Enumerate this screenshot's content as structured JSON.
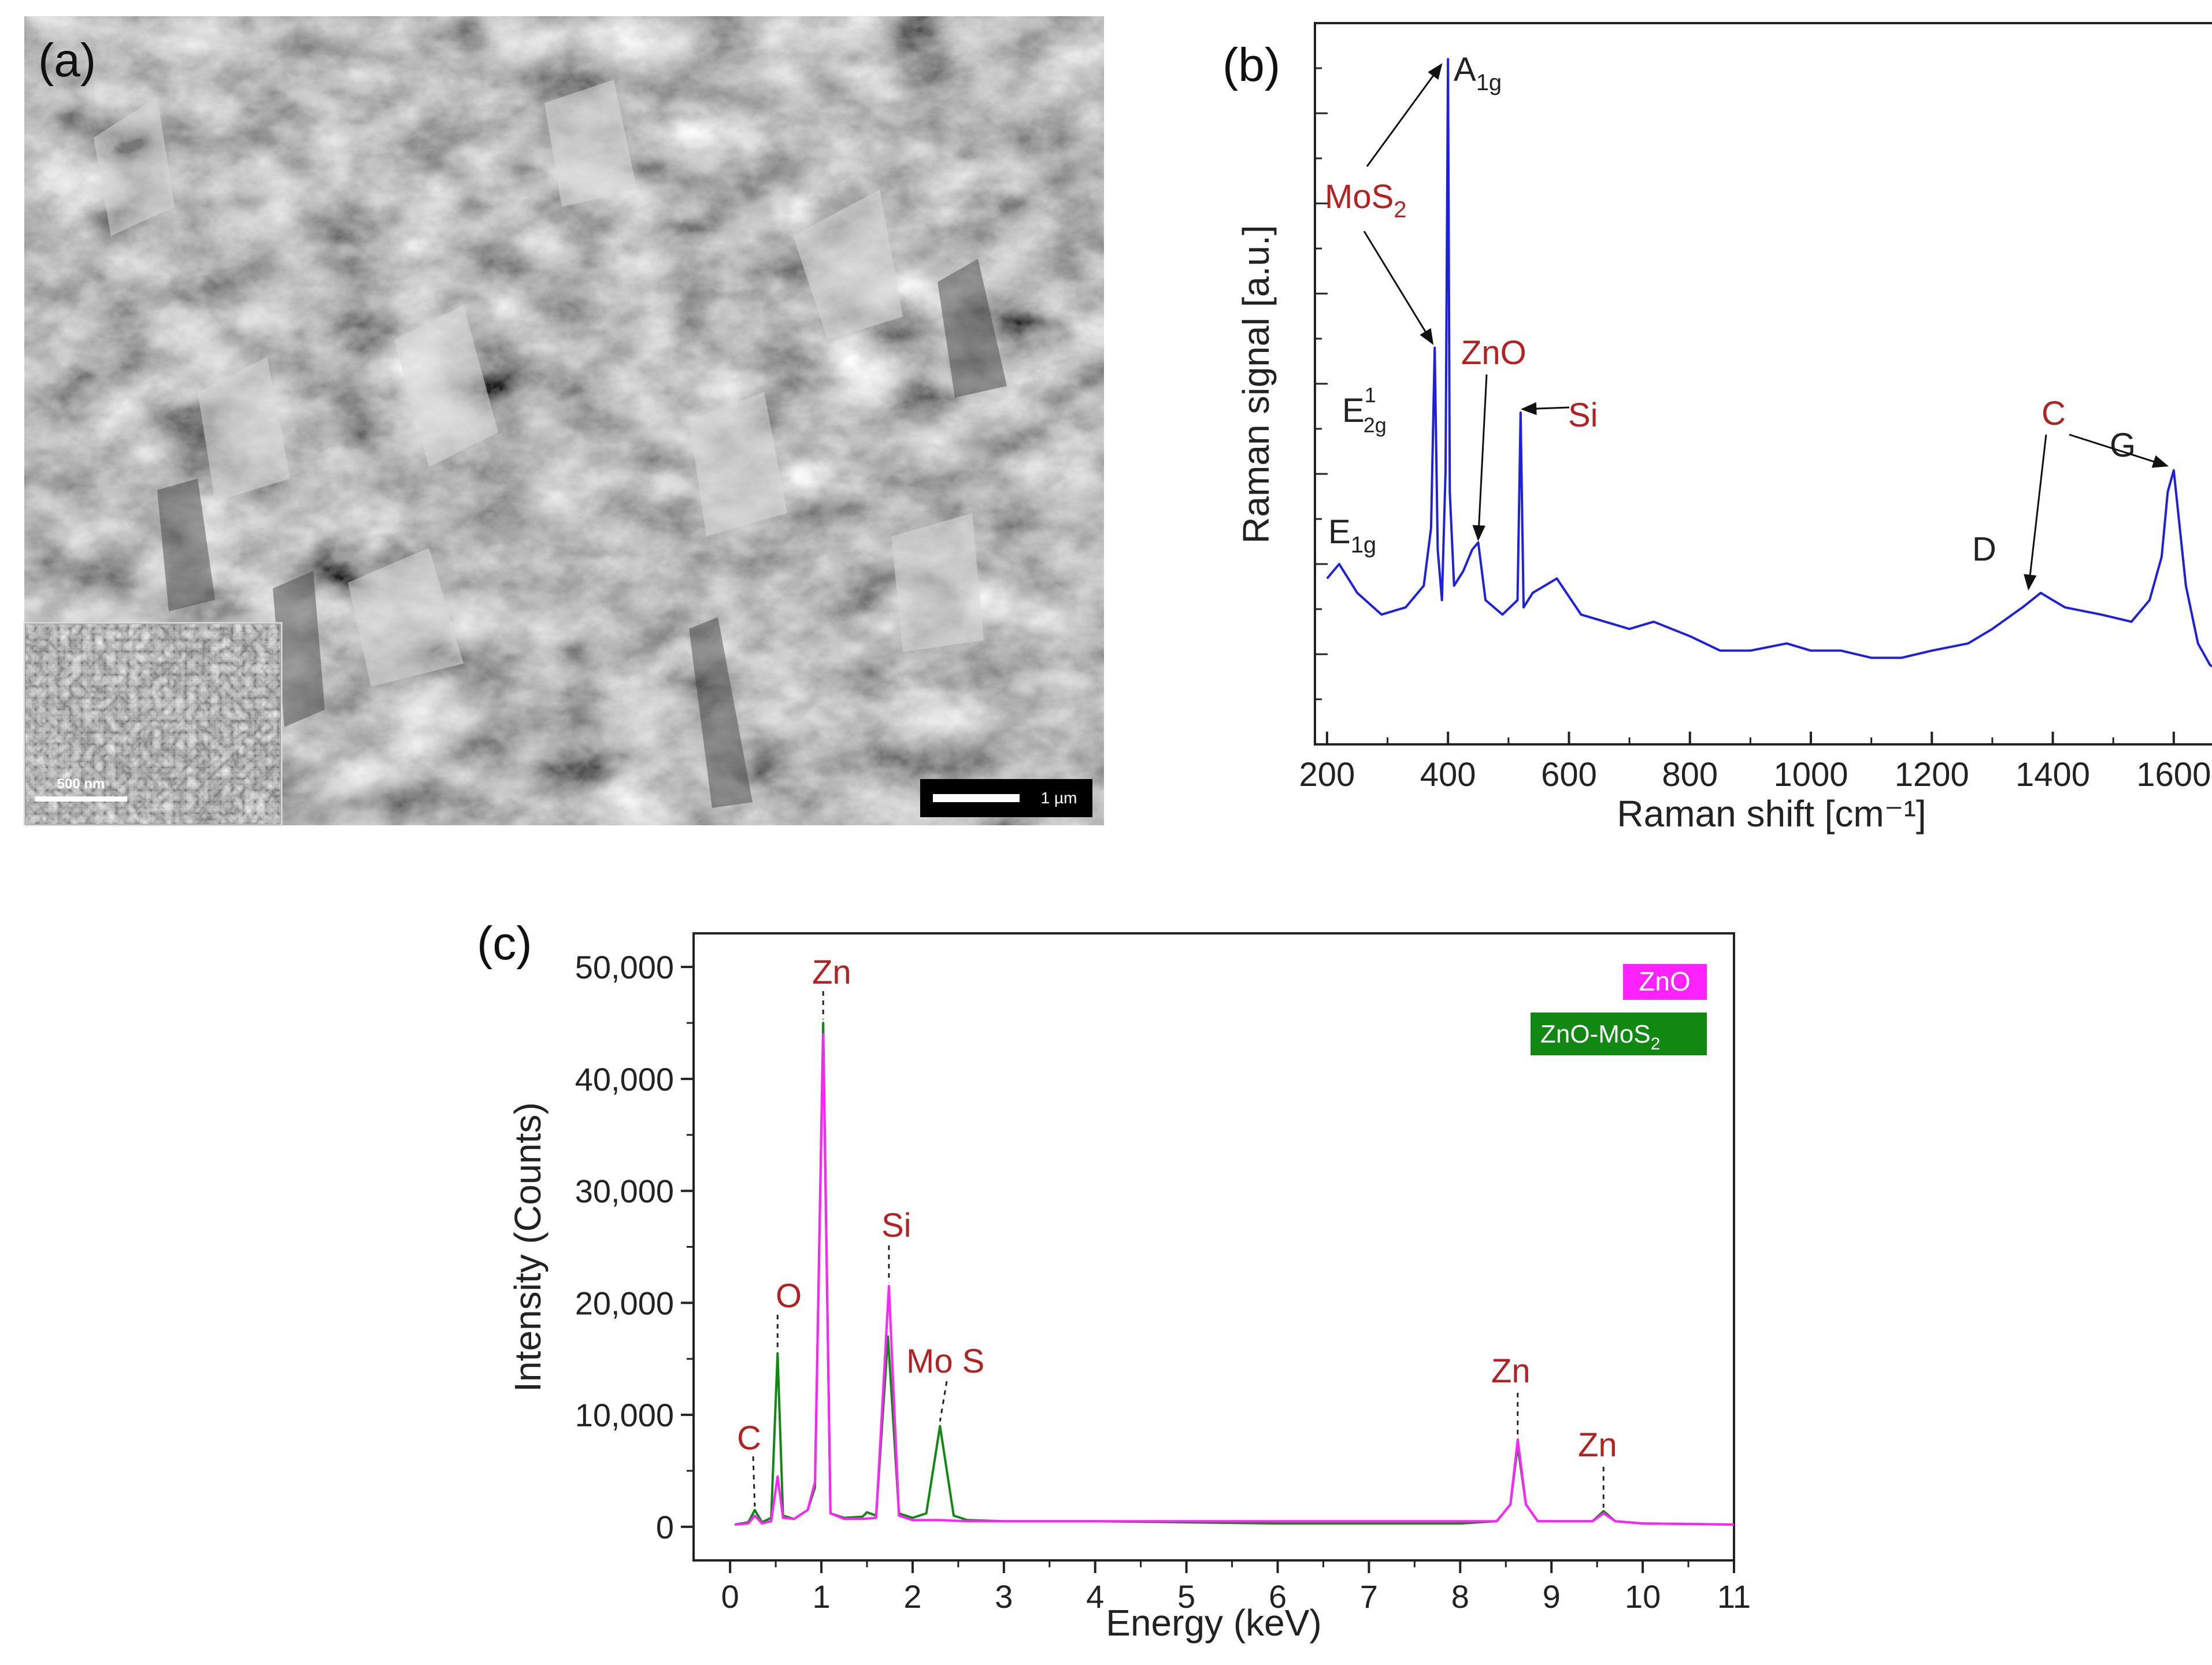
{
  "figure": {
    "panel_a": {
      "label": "(a)",
      "scale_bar": "1 µm",
      "inset_scale_bar": "500 nm"
    },
    "panel_b": {
      "label": "(b)",
      "xlabel": "Raman shift [cm⁻¹]",
      "ylabel": "Raman signal [a.u.]",
      "annotations": {
        "a1g": "A",
        "a1g_sub": "1g",
        "mos2": "MoS",
        "mos2_sub": "2",
        "e2g": "E",
        "e2g_sup": "1",
        "e2g_sub": "2g",
        "e1g": "E",
        "e1g_sub": "1g",
        "zno": "ZnO",
        "si": "Si",
        "c": "C",
        "g": "G",
        "d": "D"
      },
      "colors": {
        "line": "#1f1fe0",
        "material_label": "#b22222",
        "mode_label": "#222222"
      }
    },
    "panel_c": {
      "label": "(c)",
      "xlabel": "Energy (keV)",
      "ylabel": "Intensity (Counts)",
      "annotations": {
        "zn1": "Zn",
        "si": "Si",
        "o": "O",
        "c": "C",
        "mos": "Mo S",
        "zn2": "Zn",
        "zn3": "Zn"
      },
      "legend": {
        "zno": "ZnO",
        "znomos2": "ZnO-MoS",
        "znomos2_sub": "2"
      },
      "colors": {
        "zno": "#ff22ff",
        "znomos2": "#118811",
        "label": "#b22222"
      }
    }
  },
  "chart_data": [
    {
      "type": "line",
      "panel": "b",
      "xlabel": "Raman shift [cm⁻¹]",
      "ylabel": "Raman signal [a.u.]",
      "xlim": [
        180,
        1690
      ],
      "ylim": [
        0,
        100
      ],
      "xticks": [
        200,
        400,
        600,
        800,
        1000,
        1200,
        1400,
        1600
      ],
      "y_tick_labels_shown": false,
      "series": [
        {
          "x": [
            200,
            220,
            250,
            290,
            330,
            360,
            372,
            378,
            383,
            390,
            396,
            400,
            403,
            410,
            425,
            440,
            450,
            462,
            490,
            515,
            520,
            525,
            540,
            580,
            620,
            700,
            740,
            800,
            850,
            900,
            960,
            1000,
            1050,
            1100,
            1150,
            1200,
            1260,
            1300,
            1350,
            1380,
            1420,
            1480,
            1530,
            1560,
            1580,
            1590,
            1600,
            1620,
            1640,
            1660,
            1680
          ],
          "y": [
            23,
            25,
            21,
            18,
            19,
            22,
            30,
            55,
            27,
            20,
            38,
            95,
            35,
            22,
            24,
            27,
            28,
            20,
            18,
            20,
            46,
            19,
            21,
            23,
            18,
            16,
            17,
            15,
            13,
            13,
            14,
            13,
            13,
            12,
            12,
            13,
            14,
            16,
            19,
            21,
            19,
            18,
            17,
            20,
            26,
            35,
            38,
            22,
            14,
            11,
            10
          ]
        }
      ]
    },
    {
      "type": "line",
      "panel": "c",
      "xlabel": "Energy (keV)",
      "ylabel": "Intensity (Counts)",
      "xlim": [
        -0.4,
        11
      ],
      "ylim": [
        -3000,
        53000
      ],
      "xticks": [
        0,
        1,
        2,
        3,
        4,
        5,
        6,
        7,
        8,
        9,
        10,
        11
      ],
      "yticks": [
        0,
        10000,
        20000,
        30000,
        40000,
        50000
      ],
      "ytick_labels": [
        "0",
        "10,000",
        "20,000",
        "30,000",
        "40,000",
        "50,000"
      ],
      "series": [
        {
          "name": "ZnO",
          "x": [
            0.05,
            0.2,
            0.27,
            0.35,
            0.45,
            0.52,
            0.58,
            0.7,
            0.85,
            0.93,
            1.02,
            1.1,
            1.25,
            1.45,
            1.6,
            1.74,
            1.85,
            2.0,
            2.3,
            2.6,
            3.0,
            4.0,
            5.0,
            6.0,
            7.0,
            8.0,
            8.4,
            8.55,
            8.63,
            8.72,
            8.85,
            9.2,
            9.45,
            9.57,
            9.7,
            10.0,
            11.0
          ],
          "y": [
            200,
            300,
            1000,
            300,
            500,
            4500,
            800,
            700,
            1500,
            4000,
            44000,
            1200,
            700,
            700,
            800,
            21500,
            1000,
            600,
            600,
            500,
            500,
            500,
            500,
            500,
            500,
            500,
            500,
            2000,
            7800,
            2000,
            500,
            500,
            500,
            1200,
            500,
            300,
            200
          ]
        },
        {
          "name": "ZnO-MoS2",
          "x": [
            0.05,
            0.2,
            0.27,
            0.35,
            0.45,
            0.52,
            0.58,
            0.7,
            0.85,
            0.93,
            1.02,
            1.1,
            1.25,
            1.45,
            1.5,
            1.6,
            1.73,
            1.85,
            2.0,
            2.15,
            2.3,
            2.45,
            2.6,
            3.0,
            4.0,
            5.0,
            6.0,
            7.0,
            8.0,
            8.4,
            8.55,
            8.63,
            8.72,
            8.85,
            9.2,
            9.45,
            9.57,
            9.7,
            10.0,
            11.0
          ],
          "y": [
            200,
            400,
            1500,
            400,
            800,
            15500,
            1000,
            700,
            1500,
            3500,
            45000,
            1200,
            800,
            900,
            1300,
            1000,
            17000,
            1200,
            800,
            1200,
            9000,
            1000,
            600,
            500,
            500,
            400,
            300,
            300,
            300,
            500,
            2000,
            7200,
            2000,
            500,
            500,
            500,
            1400,
            500,
            300,
            200
          ]
        }
      ]
    }
  ]
}
